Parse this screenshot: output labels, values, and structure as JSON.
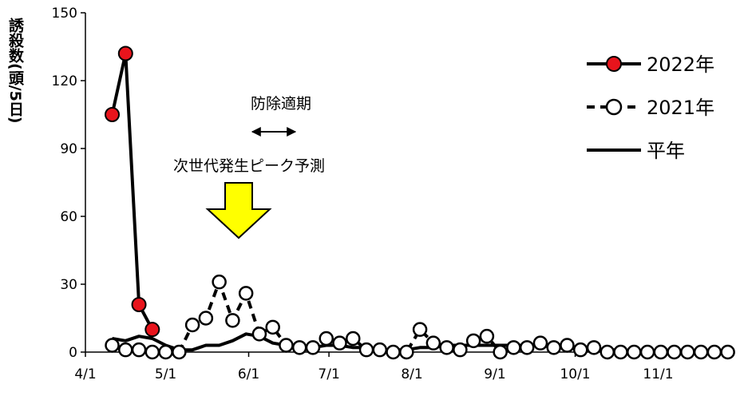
{
  "chart_data": {
    "type": "line",
    "ylabel": "誘殺数(頭/5日)",
    "ylim": [
      0,
      150
    ],
    "yticks": [
      0,
      30,
      60,
      90,
      120,
      150
    ],
    "xticks": [
      "4/1",
      "5/1",
      "6/1",
      "7/1",
      "8/1",
      "9/1",
      "10/1",
      "11/1"
    ],
    "xtick_days": [
      0,
      30,
      61,
      91,
      122,
      153,
      183,
      214
    ],
    "xlim_days": [
      0,
      241
    ],
    "grid": false,
    "legend_position": "top-right",
    "series": [
      {
        "name": "2022年",
        "style": "solid-red-markers",
        "x": [
          10,
          15,
          20,
          25
        ],
        "y": [
          105,
          132,
          21,
          10
        ]
      },
      {
        "name": "2021年",
        "style": "dashed-open-markers",
        "x": [
          10,
          15,
          20,
          25,
          30,
          35,
          40,
          45,
          50,
          55,
          60,
          65,
          70,
          75,
          80,
          85,
          90,
          95,
          100,
          105,
          110,
          115,
          120,
          125,
          130,
          135,
          140,
          145,
          150,
          155,
          160,
          165,
          170,
          175,
          180,
          185,
          190,
          195,
          200,
          205,
          210,
          215,
          220,
          225,
          230,
          235,
          240
        ],
        "y": [
          3,
          1,
          1,
          0,
          0,
          0,
          12,
          15,
          31,
          14,
          26,
          8,
          11,
          3,
          2,
          2,
          6,
          4,
          6,
          1,
          1,
          0,
          0,
          10,
          4,
          2,
          1,
          5,
          7,
          0,
          2,
          2,
          4,
          2,
          3,
          1,
          2,
          0,
          0,
          0,
          0,
          0,
          0,
          0,
          0,
          0,
          0
        ]
      },
      {
        "name": "平年",
        "style": "solid-line",
        "x": [
          10,
          15,
          20,
          25,
          30,
          35,
          40,
          45,
          50,
          55,
          60,
          65,
          70,
          75,
          80,
          85,
          90,
          95,
          100,
          105,
          110,
          115,
          120,
          125,
          130,
          135,
          140,
          145,
          150,
          155,
          160,
          165,
          170,
          175,
          180,
          185,
          190,
          195,
          200,
          205,
          210,
          215,
          220,
          225,
          230,
          235,
          240
        ],
        "y": [
          6,
          5,
          7,
          6,
          3,
          1,
          1,
          3,
          3,
          5,
          8,
          7,
          4,
          3,
          2,
          2,
          3,
          3,
          2,
          2,
          1,
          1,
          1,
          2,
          2,
          3,
          3,
          3,
          3,
          3,
          3,
          3,
          3,
          2,
          2,
          1,
          1,
          1,
          1,
          0,
          0,
          0,
          0,
          0,
          0,
          0,
          0
        ]
      }
    ],
    "annotations": {
      "control_period_label": "防除適期",
      "peak_label": "次世代発生ピーク予測"
    }
  }
}
